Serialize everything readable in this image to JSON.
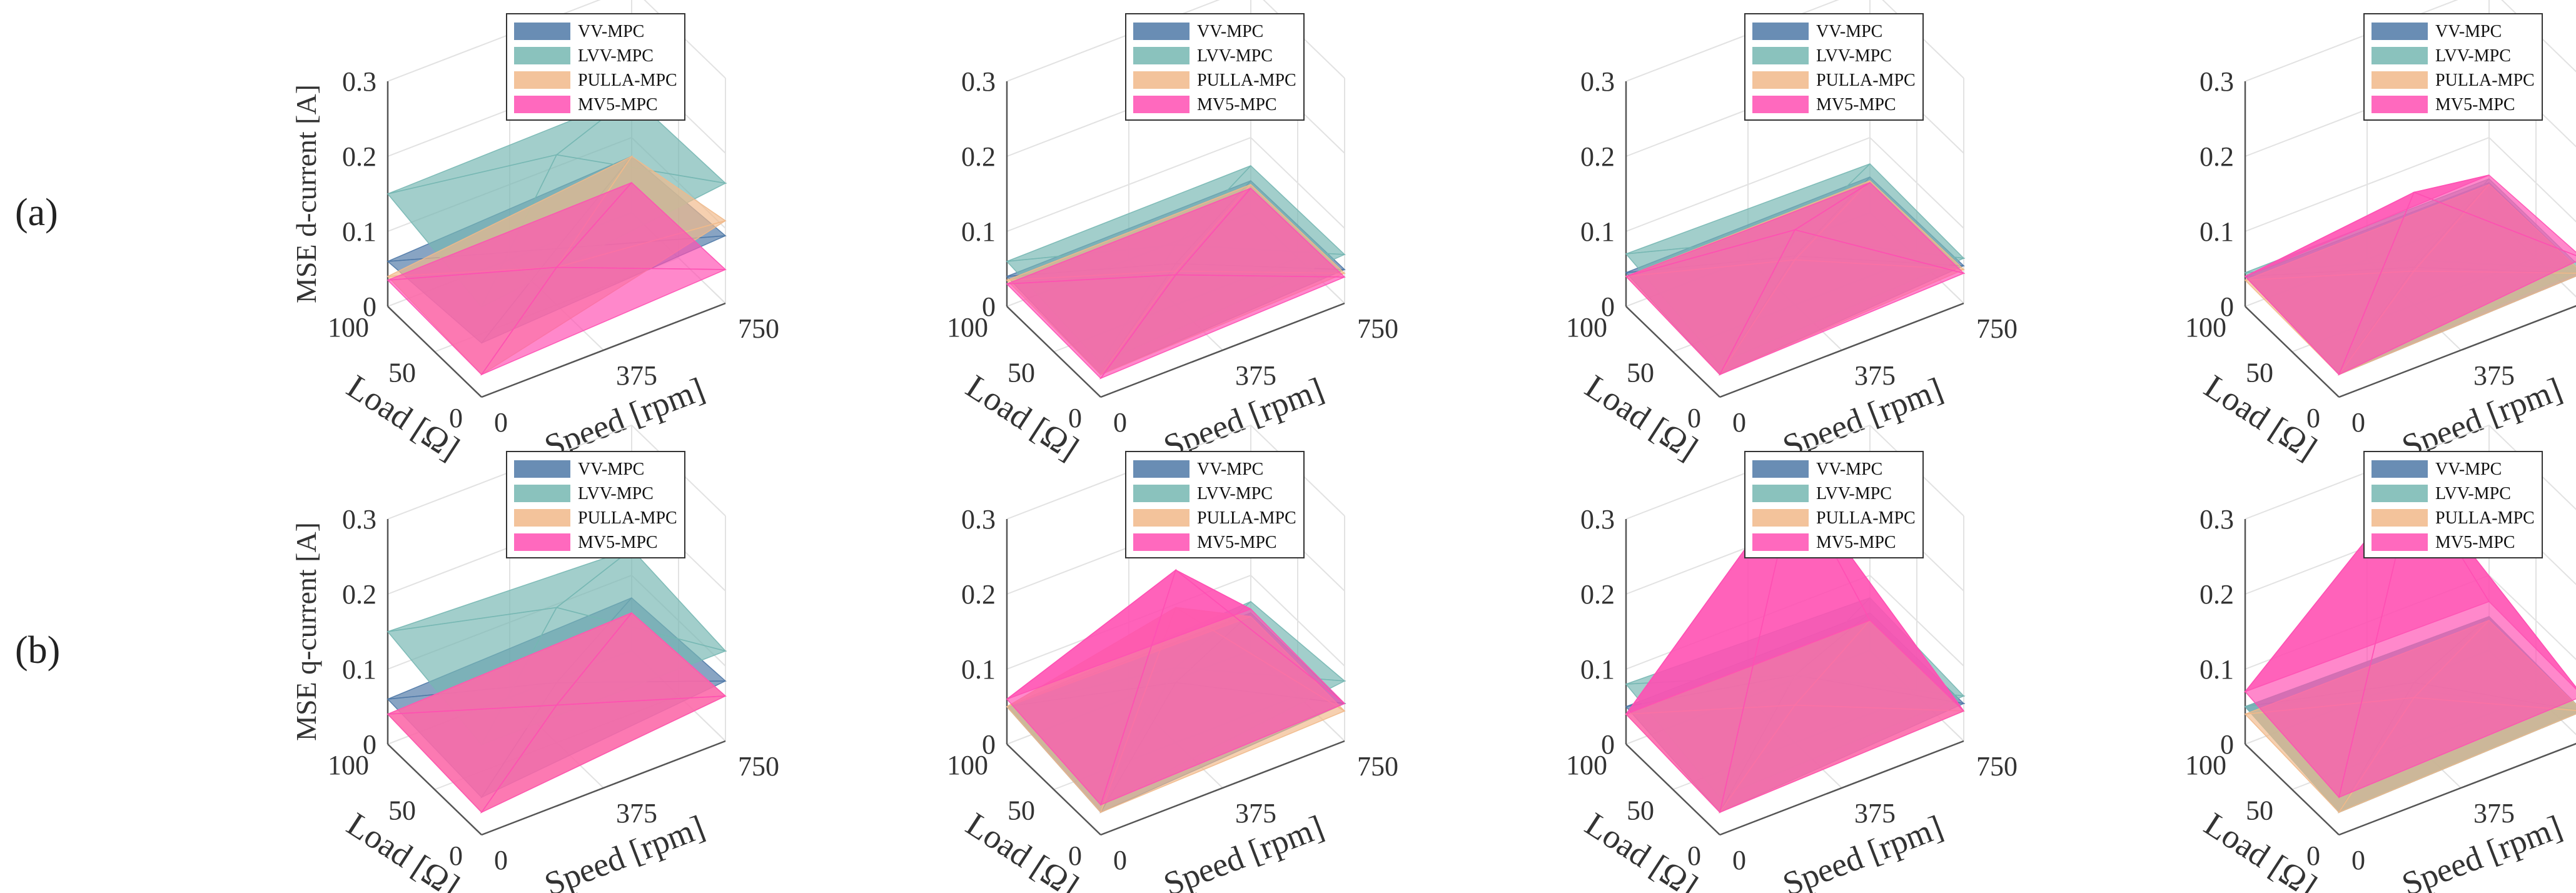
{
  "rows": [
    {
      "label": "(a)",
      "zlabel": "MSE d-current [A]"
    },
    {
      "label": "(b)",
      "zlabel": "MSE q-current [A]"
    }
  ],
  "chart_data": [
    {
      "type": "surface3d",
      "id": "a1",
      "zlabel": "MSE d-current [A]",
      "xlabel": "Load [Ω]",
      "ylabel": "Speed [rpm]",
      "x_ticks": [
        "100",
        "50",
        "0"
      ],
      "y_ticks": [
        "0",
        "375",
        "750"
      ],
      "z_ticks": [
        "0",
        "0.1",
        "0.2",
        "0.3"
      ],
      "zlim": [
        0,
        0.3
      ],
      "legend": [
        "VV-MPC",
        "LVV-MPC",
        "PULLA-MPC",
        "MV5-MPC"
      ],
      "series": [
        {
          "name": "VV-MPC",
          "color": "#4f79a7",
          "z": [
            0.06,
            0.075,
            0.072,
            0.09
          ]
        },
        {
          "name": "LVV-MPC",
          "color": "#76b7b2",
          "z": [
            0.15,
            0.2,
            0.12,
            0.16
          ]
        },
        {
          "name": "PULLA-MPC",
          "color": "#f1b98a",
          "z": [
            0.04,
            0.05,
            0.03,
            0.11
          ]
        },
        {
          "name": "MV5-MPC",
          "color": "#ff4fb3",
          "z": [
            0.035,
            0.05,
            0.03,
            0.045
          ]
        }
      ]
    },
    {
      "type": "surface3d",
      "id": "a2",
      "zlabel": "",
      "xlabel": "Load [Ω]",
      "ylabel": "Speed [rpm]",
      "x_ticks": [
        "100",
        "50",
        "0"
      ],
      "y_ticks": [
        "0",
        "375",
        "750"
      ],
      "z_ticks": [
        "0",
        "0.1",
        "0.2",
        "0.3"
      ],
      "zlim": [
        0,
        0.3
      ],
      "legend": [
        "VV-MPC",
        "LVV-MPC",
        "PULLA-MPC",
        "MV5-MPC"
      ],
      "series": [
        {
          "name": "VV-MPC",
          "color": "#4f79a7",
          "z": [
            0.04,
            0.055,
            0.03,
            0.045
          ]
        },
        {
          "name": "LVV-MPC",
          "color": "#76b7b2",
          "z": [
            0.06,
            0.08,
            0.045,
            0.065
          ]
        },
        {
          "name": "PULLA-MPC",
          "color": "#f1b98a",
          "z": [
            0.035,
            0.045,
            0.03,
            0.04
          ]
        },
        {
          "name": "MV5-MPC",
          "color": "#ff4fb3",
          "z": [
            0.03,
            0.04,
            0.025,
            0.035
          ]
        }
      ]
    },
    {
      "type": "surface3d",
      "id": "a3",
      "zlabel": "",
      "xlabel": "Load [Ω]",
      "ylabel": "Speed [rpm]",
      "x_ticks": [
        "100",
        "50",
        "0"
      ],
      "y_ticks": [
        "0",
        "375",
        "750"
      ],
      "z_ticks": [
        "0",
        "0.1",
        "0.2",
        "0.3"
      ],
      "zlim": [
        0,
        0.3
      ],
      "legend": [
        "VV-MPC",
        "LVV-MPC",
        "PULLA-MPC",
        "MV5-MPC"
      ],
      "series": [
        {
          "name": "VV-MPC",
          "color": "#4f79a7",
          "z": [
            0.045,
            0.065,
            0.03,
            0.05
          ]
        },
        {
          "name": "LVV-MPC",
          "color": "#76b7b2",
          "z": [
            0.07,
            0.09,
            0.045,
            0.06
          ]
        },
        {
          "name": "PULLA-MPC",
          "color": "#f1b98a",
          "z": [
            0.04,
            0.06,
            0.03,
            0.045
          ]
        },
        {
          "name": "MV5-MPC",
          "color": "#ff4fb3",
          "z": [
            0.04,
            0.1,
            0.03,
            0.04
          ]
        }
      ]
    },
    {
      "type": "surface3d",
      "id": "a4",
      "zlabel": "",
      "xlabel": "Load [Ω]",
      "ylabel": "Speed [rpm]",
      "x_ticks": [
        "100",
        "50",
        "0"
      ],
      "y_ticks": [
        "0",
        "375",
        "750"
      ],
      "z_ticks": [
        "0",
        "0.1",
        "0.2",
        "0.3"
      ],
      "zlim": [
        0,
        0.3
      ],
      "legend": [
        "VV-MPC",
        "LVV-MPC",
        "PULLA-MPC",
        "MV5-MPC"
      ],
      "series": [
        {
          "name": "VV-MPC",
          "color": "#4f79a7",
          "z": [
            0.04,
            0.05,
            0.03,
            0.04
          ]
        },
        {
          "name": "LVV-MPC",
          "color": "#76b7b2",
          "z": [
            0.045,
            0.06,
            0.035,
            0.045
          ]
        },
        {
          "name": "PULLA-MPC",
          "color": "#f1b98a",
          "z": [
            0.035,
            0.045,
            0.03,
            0.04
          ]
        },
        {
          "name": "MV5-MPC",
          "color": "#ff4fb3",
          "z": [
            0.04,
            0.15,
            0.03,
            0.06
          ]
        }
      ]
    },
    {
      "type": "surface3d",
      "id": "b1",
      "zlabel": "MSE q-current [A]",
      "xlabel": "Load [Ω]",
      "ylabel": "Speed [rpm]",
      "x_ticks": [
        "100",
        "50",
        "0"
      ],
      "y_ticks": [
        "0",
        "375",
        "750"
      ],
      "z_ticks": [
        "0",
        "0.1",
        "0.2",
        "0.3"
      ],
      "zlim": [
        0,
        0.3
      ],
      "legend": [
        "VV-MPC",
        "LVV-MPC",
        "PULLA-MPC",
        "MV5-MPC"
      ],
      "series": [
        {
          "name": "VV-MPC",
          "color": "#4f79a7",
          "z": [
            0.06,
            0.08,
            0.05,
            0.08
          ]
        },
        {
          "name": "LVV-MPC",
          "color": "#76b7b2",
          "z": [
            0.15,
            0.18,
            0.12,
            0.12
          ]
        },
        {
          "name": "PULLA-MPC",
          "color": "#f1b98a",
          "z": [
            0.04,
            0.05,
            0.03,
            0.06
          ]
        },
        {
          "name": "MV5-MPC",
          "color": "#ff4fb3",
          "z": [
            0.04,
            0.05,
            0.03,
            0.06
          ]
        }
      ]
    },
    {
      "type": "surface3d",
      "id": "b2",
      "zlabel": "",
      "xlabel": "Load [Ω]",
      "ylabel": "Speed [rpm]",
      "x_ticks": [
        "100",
        "50",
        "0"
      ],
      "y_ticks": [
        "0",
        "375",
        "750"
      ],
      "z_ticks": [
        "0",
        "0.1",
        "0.2",
        "0.3"
      ],
      "zlim": [
        0,
        0.3
      ],
      "legend": [
        "VV-MPC",
        "LVV-MPC",
        "PULLA-MPC",
        "MV5-MPC"
      ],
      "series": [
        {
          "name": "VV-MPC",
          "color": "#4f79a7",
          "z": [
            0.05,
            0.08,
            0.03,
            0.05
          ]
        },
        {
          "name": "LVV-MPC",
          "color": "#76b7b2",
          "z": [
            0.05,
            0.1,
            0.04,
            0.08
          ]
        },
        {
          "name": "PULLA-MPC",
          "color": "#f1b98a",
          "z": [
            0.05,
            0.18,
            0.03,
            0.04
          ]
        },
        {
          "name": "MV5-MPC",
          "color": "#ff4fb3",
          "z": [
            0.06,
            0.23,
            0.04,
            0.05
          ]
        }
      ]
    },
    {
      "type": "surface3d",
      "id": "b3",
      "zlabel": "",
      "xlabel": "Load [Ω]",
      "ylabel": "Speed [rpm]",
      "x_ticks": [
        "100",
        "50",
        "0"
      ],
      "y_ticks": [
        "0",
        "375",
        "750"
      ],
      "z_ticks": [
        "0",
        "0.1",
        "0.2",
        "0.3"
      ],
      "zlim": [
        0,
        0.3
      ],
      "legend": [
        "VV-MPC",
        "LVV-MPC",
        "PULLA-MPC",
        "MV5-MPC"
      ],
      "series": [
        {
          "name": "VV-MPC",
          "color": "#4f79a7",
          "z": [
            0.05,
            0.09,
            0.03,
            0.05
          ]
        },
        {
          "name": "LVV-MPC",
          "color": "#76b7b2",
          "z": [
            0.08,
            0.09,
            0.05,
            0.06
          ]
        },
        {
          "name": "PULLA-MPC",
          "color": "#f1b98a",
          "z": [
            0.04,
            0.05,
            0.03,
            0.04
          ]
        },
        {
          "name": "MV5-MPC",
          "color": "#ff4fb3",
          "z": [
            0.04,
            0.35,
            0.03,
            0.04
          ]
        }
      ]
    },
    {
      "type": "surface3d",
      "id": "b4",
      "zlabel": "",
      "xlabel": "Load [Ω]",
      "ylabel": "Speed [rpm]",
      "x_ticks": [
        "100",
        "50",
        "0"
      ],
      "y_ticks": [
        "0",
        "375",
        "750"
      ],
      "z_ticks": [
        "0",
        "0.1",
        "0.2",
        "0.3"
      ],
      "zlim": [
        0,
        0.3
      ],
      "legend": [
        "VV-MPC",
        "LVV-MPC",
        "PULLA-MPC",
        "MV5-MPC"
      ],
      "series": [
        {
          "name": "VV-MPC",
          "color": "#4f79a7",
          "z": [
            0.05,
            0.08,
            0.03,
            0.04
          ]
        },
        {
          "name": "LVV-MPC",
          "color": "#76b7b2",
          "z": [
            0.05,
            0.07,
            0.03,
            0.04
          ]
        },
        {
          "name": "PULLA-MPC",
          "color": "#f1b98a",
          "z": [
            0.04,
            0.06,
            0.03,
            0.04
          ]
        },
        {
          "name": "MV5-MPC",
          "color": "#ff4fb3",
          "z": [
            0.07,
            0.35,
            0.05,
            0.06
          ]
        }
      ]
    }
  ]
}
